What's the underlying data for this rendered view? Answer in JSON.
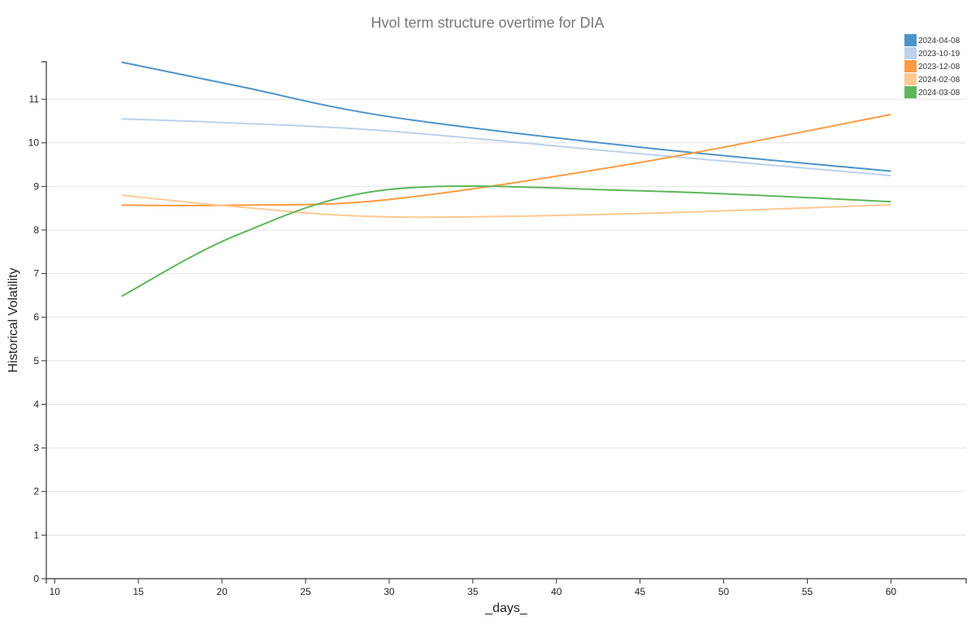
{
  "chart_data": {
    "type": "line",
    "title": "Hvol term structure overtime for DIA",
    "xlabel": "_days_",
    "ylabel": "Historical Volatility",
    "xlim": [
      9.5,
      64.5
    ],
    "ylim": [
      0,
      11.86
    ],
    "x_ticks": [
      10,
      15,
      20,
      25,
      30,
      35,
      40,
      45,
      50,
      55,
      60
    ],
    "y_ticks": [
      0,
      1,
      2,
      3,
      4,
      5,
      6,
      7,
      8,
      9,
      10,
      11
    ],
    "grid": "horizontal",
    "legend_position": "top-right",
    "x": [
      14,
      21,
      30,
      45,
      60
    ],
    "series": [
      {
        "name": "2024-04-08",
        "color": "#4e93c6",
        "values": [
          11.85,
          11.3,
          10.6,
          9.9,
          9.35
        ]
      },
      {
        "name": "2023-10-19",
        "color": "#bcd1ec",
        "values": [
          10.55,
          10.45,
          10.27,
          9.75,
          9.25
        ]
      },
      {
        "name": "2023-12-08",
        "color": "#fd9b43",
        "values": [
          8.57,
          8.57,
          8.7,
          9.55,
          10.65
        ]
      },
      {
        "name": "2024-02-08",
        "color": "#fec993",
        "values": [
          8.8,
          8.53,
          8.3,
          8.38,
          8.58
        ]
      },
      {
        "name": "2024-03-08",
        "color": "#5fb65c",
        "values": [
          6.48,
          7.9,
          8.93,
          8.9,
          8.65
        ]
      }
    ]
  }
}
